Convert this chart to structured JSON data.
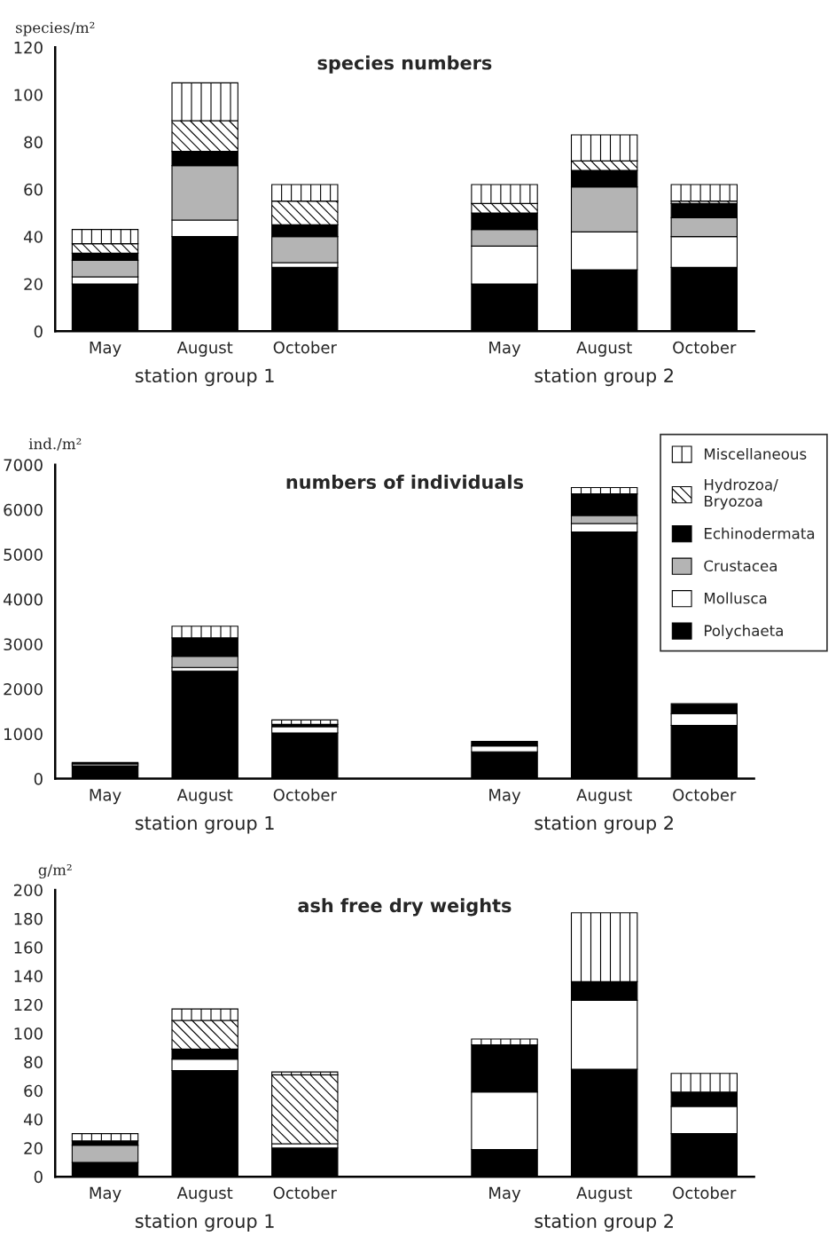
{
  "chart_data": [
    {
      "type": "bar",
      "stacked": true,
      "title": "species numbers",
      "ylabel": "species/m²",
      "categories": [
        "May",
        "August",
        "October",
        null,
        "May",
        "August",
        "October"
      ],
      "ylim": [
        0,
        120
      ],
      "yticks": [
        0,
        20,
        40,
        60,
        80,
        100,
        120
      ],
      "annotations": [
        "station group 1",
        "station group 2"
      ],
      "series": [
        {
          "color": "#000000",
          "values": [
            20,
            40,
            27,
            null,
            20,
            26,
            27
          ]
        },
        {
          "color": "#ffffff",
          "values": [
            3,
            7,
            2,
            null,
            16,
            16,
            13
          ]
        },
        {
          "color": "#b4b4b4",
          "values": [
            7,
            23,
            11,
            null,
            7,
            19,
            8
          ]
        },
        {
          "color": "#000000",
          "values": [
            3,
            6,
            5,
            null,
            7,
            7,
            6
          ]
        },
        {
          "color": "#ffffff",
          "values": [
            4,
            13,
            10,
            null,
            4,
            4,
            1
          ]
        },
        {
          "color": "#ffffff",
          "values": [
            6,
            16,
            7,
            null,
            8,
            11,
            7
          ]
        }
      ]
    },
    {
      "type": "bar",
      "stacked": true,
      "title": "numbers of individuals",
      "ylabel": "ind./m²",
      "categories": [
        "May",
        "August",
        "October",
        null,
        "May",
        "August",
        "October"
      ],
      "ylim": [
        0,
        7000
      ],
      "yticks": [
        0,
        1000,
        2000,
        3000,
        4000,
        5000,
        6000,
        7000
      ],
      "annotations": [
        "station group 1",
        "station group 2"
      ],
      "legend": "top right",
      "series": [
        {
          "name": "Polychaeta",
          "color": "#000000",
          "values": [
            290,
            2400,
            1020,
            null,
            600,
            5500,
            1190
          ]
        },
        {
          "name": "Mollusca",
          "color": "#ffffff",
          "values": [
            40,
            80,
            140,
            null,
            130,
            190,
            260
          ]
        },
        {
          "name": "Crustacea",
          "color": "#b4b4b4",
          "values": [
            0,
            250,
            0,
            null,
            0,
            180,
            0
          ]
        },
        {
          "name": "Echinodermata",
          "color": "#000000",
          "values": [
            30,
            410,
            50,
            null,
            100,
            480,
            220
          ]
        },
        {
          "name": "Hydrozoa/\nBryozoa",
          "color": "#ffffff",
          "values": [
            0,
            0,
            0,
            null,
            0,
            0,
            0
          ]
        },
        {
          "name": "Miscellaneous",
          "color": "#ffffff",
          "values": [
            0,
            260,
            100,
            null,
            0,
            140,
            0
          ]
        }
      ]
    },
    {
      "type": "bar",
      "stacked": true,
      "title": "ash free dry weights",
      "ylabel": "g/m²",
      "categories": [
        "May",
        "August",
        "October",
        null,
        "May",
        "August",
        "October"
      ],
      "ylim": [
        0,
        200
      ],
      "yticks": [
        0,
        20,
        40,
        60,
        80,
        100,
        120,
        140,
        160,
        180,
        200
      ],
      "annotations": [
        "station group 1",
        "station group 2"
      ],
      "series": [
        {
          "color": "#000000",
          "values": [
            10,
            74,
            20,
            null,
            19,
            75,
            30
          ]
        },
        {
          "color": "#ffffff",
          "values": [
            0,
            8,
            3,
            null,
            40,
            48,
            19
          ]
        },
        {
          "color": "#b4b4b4",
          "values": [
            12,
            null,
            0,
            null,
            0,
            0,
            0
          ]
        },
        {
          "color": "#000000",
          "values": [
            3,
            7,
            null,
            null,
            33,
            13,
            10
          ]
        },
        {
          "color": "#ffffff",
          "values": [
            0,
            20,
            48,
            null,
            0,
            0,
            0
          ]
        },
        {
          "color": "#ffffff",
          "values": [
            5,
            8,
            2,
            null,
            4,
            48,
            13
          ]
        }
      ]
    }
  ]
}
